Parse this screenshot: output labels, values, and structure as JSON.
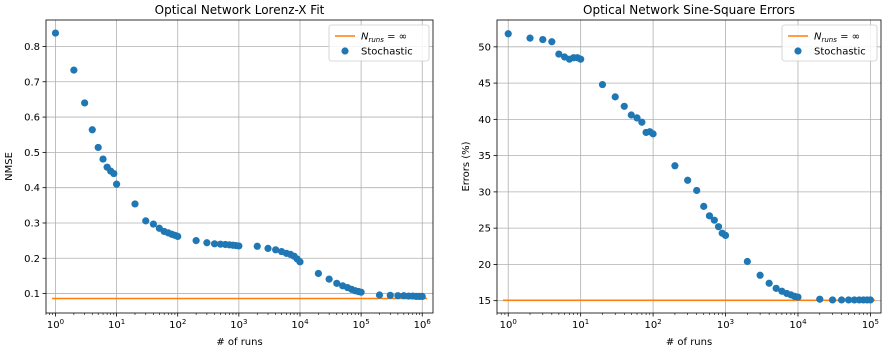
{
  "colors": {
    "stochastic": "#1f77b4",
    "baseline": "#ff7f0e",
    "grid": "#b0b0b0"
  },
  "chart_data": [
    {
      "type": "scatter",
      "title": "Optical Network Lorenz-X Fit",
      "xlabel": "# of runs",
      "ylabel": "NMSE",
      "xscale": "log",
      "xlim": [
        0.7,
        1500000
      ],
      "ylim": [
        0.045,
        0.875
      ],
      "xticks": [
        1,
        10,
        100,
        1000,
        10000,
        100000,
        1000000
      ],
      "xticklabels": [
        "10^0",
        "10^1",
        "10^2",
        "10^3",
        "10^4",
        "10^5",
        "10^6"
      ],
      "yticks": [
        0.1,
        0.2,
        0.3,
        0.4,
        0.5,
        0.6,
        0.7,
        0.8
      ],
      "yticklabels": [
        "0.1",
        "0.2",
        "0.3",
        "0.4",
        "0.5",
        "0.6",
        "0.7",
        "0.8"
      ],
      "grid": true,
      "legend_position": "top-right",
      "legend": {
        "baseline_label": "N_runs = ∞",
        "stochastic_label": "Stochastic"
      },
      "baseline": 0.086,
      "series": [
        {
          "name": "Stochastic",
          "x": [
            1,
            2,
            3,
            4,
            5,
            6,
            7,
            8,
            9,
            10,
            20,
            30,
            40,
            50,
            60,
            70,
            80,
            90,
            100,
            200,
            300,
            400,
            500,
            600,
            700,
            800,
            900,
            1000,
            2000,
            3000,
            4000,
            5000,
            6000,
            7000,
            8000,
            9000,
            10000,
            20000,
            30000,
            40000,
            50000,
            60000,
            70000,
            80000,
            90000,
            100000,
            200000,
            300000,
            400000,
            500000,
            600000,
            700000,
            800000,
            900000,
            1000000
          ],
          "y": [
            0.838,
            0.733,
            0.64,
            0.564,
            0.514,
            0.481,
            0.458,
            0.447,
            0.44,
            0.41,
            0.354,
            0.306,
            0.297,
            0.285,
            0.276,
            0.272,
            0.268,
            0.265,
            0.262,
            0.25,
            0.244,
            0.241,
            0.24,
            0.239,
            0.238,
            0.237,
            0.236,
            0.235,
            0.234,
            0.228,
            0.224,
            0.219,
            0.214,
            0.211,
            0.206,
            0.198,
            0.19,
            0.157,
            0.141,
            0.129,
            0.122,
            0.117,
            0.112,
            0.108,
            0.106,
            0.104,
            0.096,
            0.095,
            0.094,
            0.094,
            0.093,
            0.093,
            0.092,
            0.092,
            0.092
          ]
        }
      ]
    },
    {
      "type": "scatter",
      "title": "Optical Network Sine-Square Errors",
      "xlabel": "# of runs",
      "ylabel": "Errors (%)",
      "xscale": "log",
      "xlim": [
        0.7,
        140000
      ],
      "ylim": [
        13.3,
        53.7
      ],
      "xticks": [
        1,
        10,
        100,
        1000,
        10000,
        100000
      ],
      "xticklabels": [
        "10^0",
        "10^1",
        "10^2",
        "10^3",
        "10^4",
        "10^5"
      ],
      "yticks": [
        15,
        20,
        25,
        30,
        35,
        40,
        45,
        50
      ],
      "yticklabels": [
        "15",
        "20",
        "25",
        "30",
        "35",
        "40",
        "45",
        "50"
      ],
      "grid": true,
      "legend_position": "top-right",
      "legend": {
        "baseline_label": "N_runs = ∞",
        "stochastic_label": "Stochastic"
      },
      "baseline": 15.05,
      "series": [
        {
          "name": "Stochastic",
          "x": [
            1,
            2,
            3,
            4,
            5,
            6,
            7,
            8,
            9,
            10,
            20,
            30,
            40,
            50,
            60,
            70,
            80,
            90,
            100,
            200,
            300,
            400,
            500,
            600,
            700,
            800,
            900,
            1000,
            2000,
            3000,
            4000,
            5000,
            6000,
            7000,
            8000,
            9000,
            10000,
            20000,
            30000,
            40000,
            50000,
            60000,
            70000,
            80000,
            90000,
            100000
          ],
          "y": [
            51.8,
            51.2,
            51.0,
            50.7,
            49.0,
            48.6,
            48.3,
            48.5,
            48.5,
            48.3,
            44.8,
            43.1,
            41.8,
            40.6,
            40.2,
            39.6,
            38.2,
            38.3,
            38.0,
            33.6,
            31.6,
            30.2,
            28.0,
            26.7,
            26.1,
            25.2,
            24.3,
            24.0,
            20.4,
            18.5,
            17.4,
            16.7,
            16.3,
            16.0,
            15.8,
            15.6,
            15.5,
            15.2,
            15.1,
            15.1,
            15.1,
            15.1,
            15.1,
            15.1,
            15.1,
            15.1
          ]
        }
      ]
    }
  ]
}
